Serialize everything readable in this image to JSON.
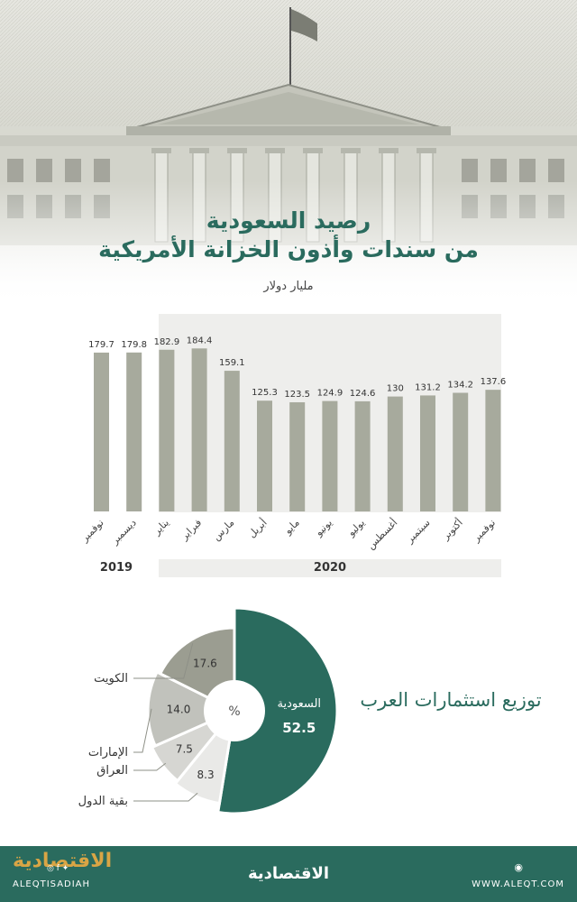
{
  "header": {
    "title_line1": "رصيد السعودية",
    "title_line2": "من سندات وأذون الخزانة الأمريكية",
    "unit": "مليار دولار"
  },
  "chart_data": [
    {
      "type": "bar",
      "categories": [
        "نوفمبر",
        "ديسمبر",
        "يناير",
        "فبراير",
        "مارس",
        "أبريل",
        "مايو",
        "يونيو",
        "يوليو",
        "أغسطس",
        "سبتمبر",
        "أكتوبر",
        "نوفمبر"
      ],
      "values": [
        179.7,
        179.8,
        182.9,
        184.4,
        159.1,
        125.3,
        123.5,
        124.9,
        124.6,
        130,
        131.2,
        134.2,
        137.6
      ],
      "value_labels": [
        "179.7",
        "179.8",
        "182.9",
        "184.4",
        "159.1",
        "125.3",
        "123.5",
        "124.9",
        "124.6",
        "130",
        "131.2",
        "134.2",
        "137.6"
      ],
      "year_groups": [
        {
          "label": "2019",
          "from": 0,
          "to": 1
        },
        {
          "label": "2020",
          "from": 2,
          "to": 12
        }
      ],
      "bar_color": "#a7aa9d"
    },
    {
      "type": "pie",
      "unit_label": "%",
      "slices": [
        {
          "label": "السعودية",
          "value": 52.5,
          "value_label": "52.5",
          "color": "#2a6b5e"
        },
        {
          "label": "بقية الدول",
          "value": 8.3,
          "value_label": "8.3",
          "color": "#e9e9e7"
        },
        {
          "label": "العراق",
          "value": 7.5,
          "value_label": "7.5",
          "color": "#d6d6d2"
        },
        {
          "label": "الإمارات",
          "value": 14.0,
          "value_label": "14.0",
          "color": "#c1c2bc"
        },
        {
          "label": "الكويت",
          "value": 17.6,
          "value_label": "17.6",
          "color": "#9b9d91"
        }
      ]
    }
  ],
  "distribution_title": "توزيع استثمارات العرب",
  "footer": {
    "logo_left": "الاقتصادية",
    "handle": "ALEQTISADIAH",
    "logo_center": "الاقتصادية",
    "website": "WWW.ALEQT.COM"
  },
  "icons": [
    "flag-icon",
    "facebook-icon",
    "twitter-icon",
    "instagram-icon",
    "web-icon"
  ]
}
